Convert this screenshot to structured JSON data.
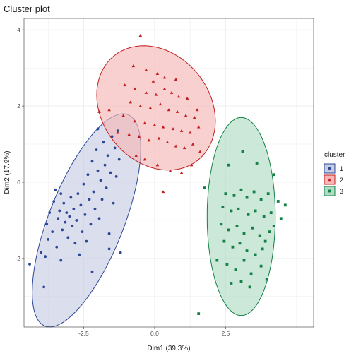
{
  "chart_data": {
    "type": "scatter",
    "title": "Cluster plot",
    "xlabel": "Dim1 (39.3%)",
    "ylabel": "Dim2 (17.9%)",
    "xlim": [
      -4.6,
      5.6
    ],
    "ylim": [
      -3.8,
      4.3
    ],
    "x_ticks": [
      -2.5,
      0,
      2.5
    ],
    "x_tick_labels": [
      "-2.5",
      "0.0",
      "2.5"
    ],
    "y_ticks": [
      -2,
      0,
      2,
      4
    ],
    "y_tick_labels": [
      "-2",
      "0",
      "2",
      "4"
    ],
    "grid": true,
    "legend": {
      "title": "cluster",
      "position": "right",
      "entries": [
        {
          "label": "1",
          "color": "#2d4796",
          "fill": "#c6cde3",
          "shape": "circle"
        },
        {
          "label": "2",
          "color": "#c21d1d",
          "fill": "#f6b7b7",
          "shape": "triangle"
        },
        {
          "label": "3",
          "color": "#148046",
          "fill": "#b0dcc4",
          "shape": "square"
        }
      ]
    },
    "ellipses": [
      {
        "cluster": "1",
        "center": [
          -2.4,
          -1.0
        ],
        "semi_axes": [
          3.15,
          1.25
        ],
        "angle_deg": 60
      },
      {
        "cluster": "2",
        "center": [
          0.05,
          1.95
        ],
        "semi_axes": [
          2.15,
          1.55
        ],
        "angle_deg": -20
      },
      {
        "cluster": "3",
        "center": [
          3.05,
          -0.9
        ],
        "semi_axes": [
          2.6,
          1.2
        ],
        "angle_deg": 90
      }
    ],
    "series": [
      {
        "name": "1",
        "points": [
          [
            -4.4,
            -2.15
          ],
          [
            -3.9,
            -2.75
          ],
          [
            -3.85,
            -1.95
          ],
          [
            -3.75,
            -1.5
          ],
          [
            -3.8,
            -1.1
          ],
          [
            -3.7,
            -0.8
          ],
          [
            -3.6,
            -1.3
          ],
          [
            -3.55,
            -0.5
          ],
          [
            -3.5,
            -0.2
          ],
          [
            -3.45,
            -1.7
          ],
          [
            -3.4,
            -0.95
          ],
          [
            -3.35,
            -0.75
          ],
          [
            -3.3,
            -0.3
          ],
          [
            -3.25,
            -1.25
          ],
          [
            -3.2,
            -0.55
          ],
          [
            -3.15,
            -1.05
          ],
          [
            -3.1,
            -0.8
          ],
          [
            -3.05,
            -1.45
          ],
          [
            -3.0,
            -0.9
          ],
          [
            -2.95,
            -0.4
          ],
          [
            -2.9,
            -1.15
          ],
          [
            -2.85,
            -0.7
          ],
          [
            -2.8,
            -1.6
          ],
          [
            -2.75,
            -1.0
          ],
          [
            -2.7,
            -0.3
          ],
          [
            -2.65,
            -1.9
          ],
          [
            -2.6,
            -0.6
          ],
          [
            -2.55,
            -1.3
          ],
          [
            -2.5,
            -0.05
          ],
          [
            -2.45,
            -0.85
          ],
          [
            -2.4,
            -1.55
          ],
          [
            -2.35,
            0.2
          ],
          [
            -2.3,
            -0.45
          ],
          [
            -2.25,
            -1.1
          ],
          [
            -2.2,
            0.55
          ],
          [
            -2.15,
            -0.25
          ],
          [
            -2.1,
            -0.7
          ],
          [
            -2.05,
            0.85
          ],
          [
            -2.0,
            0.3
          ],
          [
            -1.95,
            -0.95
          ],
          [
            -1.9,
            0.05
          ],
          [
            -1.85,
            -0.45
          ],
          [
            -1.8,
            1.05
          ],
          [
            -1.75,
            0.45
          ],
          [
            -1.7,
            -0.15
          ],
          [
            -1.65,
            0.7
          ],
          [
            -1.6,
            -1.35
          ],
          [
            -1.55,
            0.25
          ],
          [
            -1.5,
            1.2
          ],
          [
            -1.45,
            -0.55
          ],
          [
            -1.4,
            0.9
          ],
          [
            -1.35,
            0.15
          ],
          [
            -1.3,
            1.35
          ],
          [
            -1.25,
            0.6
          ],
          [
            -1.2,
            -1.85
          ],
          [
            -3.3,
            -2.05
          ],
          [
            -2.2,
            -2.35
          ],
          [
            -1.6,
            -1.75
          ],
          [
            -2.0,
            1.4
          ],
          [
            -4.0,
            -1.85
          ]
        ]
      },
      {
        "name": "2",
        "points": [
          [
            -0.5,
            3.85
          ],
          [
            -0.75,
            3.05
          ],
          [
            -0.3,
            2.95
          ],
          [
            0.1,
            2.85
          ],
          [
            0.35,
            2.75
          ],
          [
            -1.05,
            2.55
          ],
          [
            -0.7,
            2.45
          ],
          [
            -0.3,
            2.35
          ],
          [
            0.05,
            2.3
          ],
          [
            0.35,
            2.45
          ],
          [
            0.6,
            2.35
          ],
          [
            0.85,
            2.25
          ],
          [
            1.15,
            2.2
          ],
          [
            -0.85,
            2.1
          ],
          [
            -0.5,
            2.0
          ],
          [
            -0.15,
            1.95
          ],
          [
            0.2,
            2.05
          ],
          [
            0.5,
            1.9
          ],
          [
            0.8,
            1.85
          ],
          [
            1.1,
            1.75
          ],
          [
            1.4,
            1.7
          ],
          [
            -1.1,
            1.75
          ],
          [
            -0.7,
            1.6
          ],
          [
            -0.35,
            1.55
          ],
          [
            0.0,
            1.5
          ],
          [
            0.3,
            1.45
          ],
          [
            0.65,
            1.4
          ],
          [
            0.95,
            1.35
          ],
          [
            1.25,
            1.3
          ],
          [
            1.55,
            1.45
          ],
          [
            -1.3,
            1.3
          ],
          [
            -0.9,
            1.25
          ],
          [
            -0.55,
            1.2
          ],
          [
            -0.2,
            1.1
          ],
          [
            0.15,
            1.15
          ],
          [
            0.45,
            1.05
          ],
          [
            0.75,
            0.95
          ],
          [
            1.05,
            0.9
          ],
          [
            1.35,
            1.0
          ],
          [
            1.6,
            0.8
          ],
          [
            -1.6,
            1.9
          ],
          [
            -1.95,
            1.85
          ],
          [
            -0.65,
            0.7
          ],
          [
            -0.35,
            0.6
          ],
          [
            0.1,
            0.45
          ],
          [
            0.55,
            0.3
          ],
          [
            0.95,
            0.25
          ],
          [
            1.3,
            0.45
          ],
          [
            1.5,
            1.9
          ],
          [
            -0.05,
            2.65
          ],
          [
            0.75,
            2.7
          ],
          [
            0.3,
            -0.25
          ]
        ]
      },
      {
        "name": "3",
        "points": [
          [
            3.1,
            0.8
          ],
          [
            2.6,
            0.45
          ],
          [
            3.6,
            0.5
          ],
          [
            4.2,
            0.2
          ],
          [
            1.75,
            -0.15
          ],
          [
            2.5,
            -0.3
          ],
          [
            2.8,
            -0.35
          ],
          [
            3.05,
            -0.2
          ],
          [
            3.25,
            -0.4
          ],
          [
            3.5,
            -0.25
          ],
          [
            3.75,
            -0.45
          ],
          [
            4.0,
            -0.3
          ],
          [
            4.35,
            -0.5
          ],
          [
            4.6,
            -0.6
          ],
          [
            2.4,
            -0.65
          ],
          [
            2.7,
            -0.75
          ],
          [
            2.95,
            -0.7
          ],
          [
            3.3,
            -0.85
          ],
          [
            3.55,
            -0.75
          ],
          [
            3.85,
            -0.9
          ],
          [
            4.1,
            -0.8
          ],
          [
            4.45,
            -0.95
          ],
          [
            2.35,
            -1.1
          ],
          [
            2.6,
            -1.25
          ],
          [
            2.9,
            -1.15
          ],
          [
            3.15,
            -1.35
          ],
          [
            3.45,
            -1.2
          ],
          [
            3.7,
            -1.4
          ],
          [
            4.05,
            -1.3
          ],
          [
            2.45,
            -1.55
          ],
          [
            2.75,
            -1.7
          ],
          [
            3.0,
            -1.6
          ],
          [
            3.25,
            -1.8
          ],
          [
            3.55,
            -1.9
          ],
          [
            3.8,
            -1.75
          ],
          [
            2.2,
            -2.05
          ],
          [
            2.55,
            -2.15
          ],
          [
            2.85,
            -2.3
          ],
          [
            3.15,
            -2.05
          ],
          [
            3.4,
            -2.4
          ],
          [
            2.7,
            -2.65
          ],
          [
            3.05,
            -2.6
          ],
          [
            3.35,
            -2.75
          ],
          [
            3.75,
            -2.2
          ],
          [
            3.95,
            -2.55
          ],
          [
            1.55,
            -3.45
          ],
          [
            3.9,
            -1.55
          ],
          [
            4.2,
            -1.15
          ]
        ]
      }
    ]
  }
}
